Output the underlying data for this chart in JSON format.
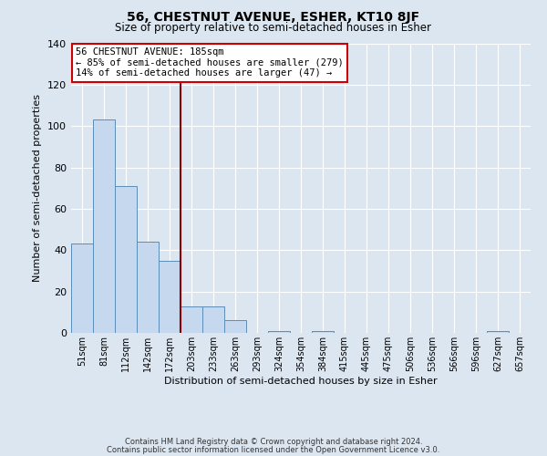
{
  "title": "56, CHESTNUT AVENUE, ESHER, KT10 8JF",
  "subtitle": "Size of property relative to semi-detached houses in Esher",
  "xlabel": "Distribution of semi-detached houses by size in Esher",
  "ylabel": "Number of semi-detached properties",
  "bar_labels": [
    "51sqm",
    "81sqm",
    "112sqm",
    "142sqm",
    "172sqm",
    "203sqm",
    "233sqm",
    "263sqm",
    "293sqm",
    "324sqm",
    "354sqm",
    "384sqm",
    "415sqm",
    "445sqm",
    "475sqm",
    "506sqm",
    "536sqm",
    "566sqm",
    "596sqm",
    "627sqm",
    "657sqm"
  ],
  "bar_values": [
    43,
    103,
    71,
    44,
    35,
    13,
    13,
    6,
    0,
    1,
    0,
    1,
    0,
    0,
    0,
    0,
    0,
    0,
    0,
    1,
    0
  ],
  "bar_color": "#c5d8ed",
  "bar_edge_color": "#5b8db8",
  "vline_x": 5,
  "vline_color": "#8b0000",
  "annotation_title": "56 CHESTNUT AVENUE: 185sqm",
  "annotation_line1": "← 85% of semi-detached houses are smaller (279)",
  "annotation_line2": "14% of semi-detached houses are larger (47) →",
  "annotation_box_color": "#ffffff",
  "annotation_box_edge": "#cc0000",
  "ylim": [
    0,
    140
  ],
  "yticks": [
    0,
    20,
    40,
    60,
    80,
    100,
    120,
    140
  ],
  "footer1": "Contains HM Land Registry data © Crown copyright and database right 2024.",
  "footer2": "Contains public sector information licensed under the Open Government Licence v3.0.",
  "bg_color": "#dce6f1"
}
